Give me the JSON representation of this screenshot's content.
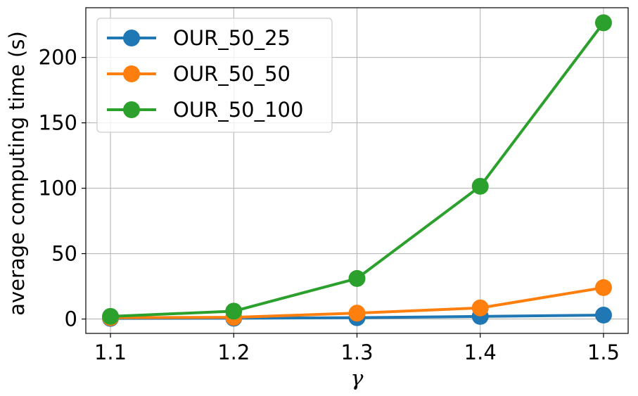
{
  "chart_data": {
    "type": "line",
    "title": "",
    "xlabel": "γ",
    "ylabel": "average computing time (s)",
    "x": [
      1.1,
      1.2,
      1.3,
      1.4,
      1.5
    ],
    "x_tick_labels": [
      "1.1",
      "1.2",
      "1.3",
      "1.4",
      "1.5"
    ],
    "y_ticks": [
      0,
      50,
      100,
      150,
      200
    ],
    "y_tick_labels": [
      "0",
      "50",
      "100",
      "150",
      "200"
    ],
    "xlim": [
      1.08,
      1.52
    ],
    "ylim": [
      -11,
      238
    ],
    "grid": true,
    "legend_position": "upper-left",
    "series": [
      {
        "name": "OUR_50_25",
        "color": "#1f77b4",
        "values": [
          0.5,
          0.6,
          1.0,
          2.0,
          3.0
        ]
      },
      {
        "name": "OUR_50_50",
        "color": "#ff7f0e",
        "values": [
          1.0,
          1.3,
          4.5,
          8.5,
          24.0
        ]
      },
      {
        "name": "OUR_50_100",
        "color": "#2ca02c",
        "values": [
          2.0,
          6.0,
          31.0,
          101.5,
          226.5
        ]
      }
    ]
  }
}
